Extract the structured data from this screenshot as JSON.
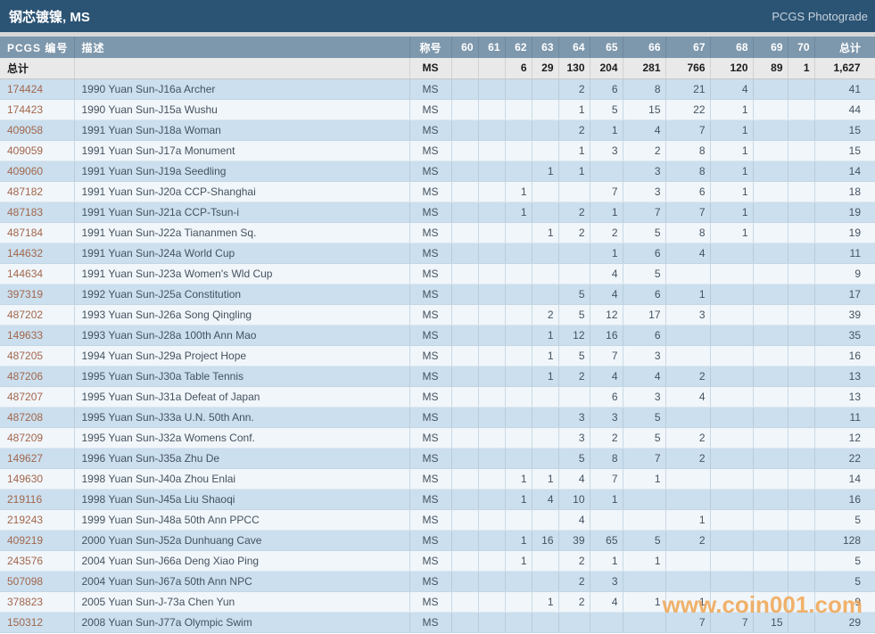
{
  "page": {
    "title": "钢芯镀镍, MS",
    "brand": "PCGS Photograde",
    "watermark": "www.coin001.com"
  },
  "colors": {
    "topbar_bg": "#2b5374",
    "header_bg": "#7d97ac",
    "row_blue": "#cbdfee",
    "row_white": "#f1f6fa",
    "totals_bg": "#e9e9e9",
    "pcgs_link": "#a2664c",
    "watermark": "#f0a24b"
  },
  "table": {
    "columns": [
      "PCGS 编号",
      "描述",
      "称号",
      "60",
      "61",
      "62",
      "63",
      "64",
      "65",
      "66",
      "67",
      "68",
      "69",
      "70",
      "总计"
    ],
    "grade_columns": [
      "60",
      "61",
      "62",
      "63",
      "64",
      "65",
      "66",
      "67",
      "68",
      "69",
      "70"
    ],
    "totals_row": {
      "label": "总计",
      "desc": "",
      "designation": "MS",
      "grades": [
        "",
        "",
        "6",
        "29",
        "130",
        "204",
        "281",
        "766",
        "120",
        "89",
        "1"
      ],
      "total": "1,627"
    },
    "rows": [
      {
        "pcgs": "174424",
        "desc": "1990 Yuan Sun-J16a Archer",
        "designation": "MS",
        "grades": [
          "",
          "",
          "",
          "",
          "2",
          "6",
          "8",
          "21",
          "4",
          "",
          ""
        ],
        "total": "41"
      },
      {
        "pcgs": "174423",
        "desc": "1990 Yuan Sun-J15a Wushu",
        "designation": "MS",
        "grades": [
          "",
          "",
          "",
          "",
          "1",
          "5",
          "15",
          "22",
          "1",
          "",
          ""
        ],
        "total": "44"
      },
      {
        "pcgs": "409058",
        "desc": "1991 Yuan Sun-J18a Woman",
        "designation": "MS",
        "grades": [
          "",
          "",
          "",
          "",
          "2",
          "1",
          "4",
          "7",
          "1",
          "",
          ""
        ],
        "total": "15"
      },
      {
        "pcgs": "409059",
        "desc": "1991 Yuan Sun-J17a Monument",
        "designation": "MS",
        "grades": [
          "",
          "",
          "",
          "",
          "1",
          "3",
          "2",
          "8",
          "1",
          "",
          ""
        ],
        "total": "15"
      },
      {
        "pcgs": "409060",
        "desc": "1991 Yuan Sun-J19a Seedling",
        "designation": "MS",
        "grades": [
          "",
          "",
          "",
          "1",
          "1",
          "",
          "3",
          "8",
          "1",
          "",
          ""
        ],
        "total": "14"
      },
      {
        "pcgs": "487182",
        "desc": "1991 Yuan Sun-J20a CCP-Shanghai",
        "designation": "MS",
        "grades": [
          "",
          "",
          "1",
          "",
          "",
          "7",
          "3",
          "6",
          "1",
          "",
          ""
        ],
        "total": "18"
      },
      {
        "pcgs": "487183",
        "desc": "1991 Yuan Sun-J21a CCP-Tsun-i",
        "designation": "MS",
        "grades": [
          "",
          "",
          "1",
          "",
          "2",
          "1",
          "7",
          "7",
          "1",
          "",
          ""
        ],
        "total": "19"
      },
      {
        "pcgs": "487184",
        "desc": "1991 Yuan Sun-J22a Tiananmen Sq.",
        "designation": "MS",
        "grades": [
          "",
          "",
          "",
          "1",
          "2",
          "2",
          "5",
          "8",
          "1",
          "",
          ""
        ],
        "total": "19"
      },
      {
        "pcgs": "144632",
        "desc": "1991 Yuan Sun-J24a World Cup",
        "designation": "MS",
        "grades": [
          "",
          "",
          "",
          "",
          "",
          "1",
          "6",
          "4",
          "",
          "",
          ""
        ],
        "total": "11"
      },
      {
        "pcgs": "144634",
        "desc": "1991 Yuan Sun-J23a Women's Wld Cup",
        "designation": "MS",
        "grades": [
          "",
          "",
          "",
          "",
          "",
          "4",
          "5",
          "",
          "",
          "",
          ""
        ],
        "total": "9"
      },
      {
        "pcgs": "397319",
        "desc": "1992 Yuan Sun-J25a Constitution",
        "designation": "MS",
        "grades": [
          "",
          "",
          "",
          "",
          "5",
          "4",
          "6",
          "1",
          "",
          "",
          ""
        ],
        "total": "17"
      },
      {
        "pcgs": "487202",
        "desc": "1993 Yuan Sun-J26a Song Qingling",
        "designation": "MS",
        "grades": [
          "",
          "",
          "",
          "2",
          "5",
          "12",
          "17",
          "3",
          "",
          "",
          ""
        ],
        "total": "39"
      },
      {
        "pcgs": "149633",
        "desc": "1993 Yuan Sun-J28a 100th Ann Mao",
        "designation": "MS",
        "grades": [
          "",
          "",
          "",
          "1",
          "12",
          "16",
          "6",
          "",
          "",
          "",
          ""
        ],
        "total": "35"
      },
      {
        "pcgs": "487205",
        "desc": "1994 Yuan Sun-J29a Project Hope",
        "designation": "MS",
        "grades": [
          "",
          "",
          "",
          "1",
          "5",
          "7",
          "3",
          "",
          "",
          "",
          ""
        ],
        "total": "16"
      },
      {
        "pcgs": "487206",
        "desc": "1995 Yuan Sun-J30a Table Tennis",
        "designation": "MS",
        "grades": [
          "",
          "",
          "",
          "1",
          "2",
          "4",
          "4",
          "2",
          "",
          "",
          ""
        ],
        "total": "13"
      },
      {
        "pcgs": "487207",
        "desc": "1995 Yuan Sun-J31a Defeat of Japan",
        "designation": "MS",
        "grades": [
          "",
          "",
          "",
          "",
          "",
          "6",
          "3",
          "4",
          "",
          "",
          ""
        ],
        "total": "13"
      },
      {
        "pcgs": "487208",
        "desc": "1995 Yuan Sun-J33a U.N. 50th Ann.",
        "designation": "MS",
        "grades": [
          "",
          "",
          "",
          "",
          "3",
          "3",
          "5",
          "",
          "",
          "",
          ""
        ],
        "total": "11"
      },
      {
        "pcgs": "487209",
        "desc": "1995 Yuan Sun-J32a Womens Conf.",
        "designation": "MS",
        "grades": [
          "",
          "",
          "",
          "",
          "3",
          "2",
          "5",
          "2",
          "",
          "",
          ""
        ],
        "total": "12"
      },
      {
        "pcgs": "149627",
        "desc": "1996 Yuan Sun-J35a Zhu De",
        "designation": "MS",
        "grades": [
          "",
          "",
          "",
          "",
          "5",
          "8",
          "7",
          "2",
          "",
          "",
          ""
        ],
        "total": "22"
      },
      {
        "pcgs": "149630",
        "desc": "1998 Yuan Sun-J40a Zhou Enlai",
        "designation": "MS",
        "grades": [
          "",
          "",
          "1",
          "1",
          "4",
          "7",
          "1",
          "",
          "",
          "",
          ""
        ],
        "total": "14"
      },
      {
        "pcgs": "219116",
        "desc": "1998 Yuan Sun-J45a Liu Shaoqi",
        "designation": "MS",
        "grades": [
          "",
          "",
          "1",
          "4",
          "10",
          "1",
          "",
          "",
          "",
          "",
          ""
        ],
        "total": "16"
      },
      {
        "pcgs": "219243",
        "desc": "1999 Yuan Sun-J48a 50th Ann PPCC",
        "designation": "MS",
        "grades": [
          "",
          "",
          "",
          "",
          "4",
          "",
          "",
          "1",
          "",
          "",
          ""
        ],
        "total": "5"
      },
      {
        "pcgs": "409219",
        "desc": "2000 Yuan Sun-J52a Dunhuang Cave",
        "designation": "MS",
        "grades": [
          "",
          "",
          "1",
          "16",
          "39",
          "65",
          "5",
          "2",
          "",
          "",
          ""
        ],
        "total": "128"
      },
      {
        "pcgs": "243576",
        "desc": "2004 Yuan Sun-J66a Deng Xiao Ping",
        "designation": "MS",
        "grades": [
          "",
          "",
          "1",
          "",
          "2",
          "1",
          "1",
          "",
          "",
          "",
          ""
        ],
        "total": "5"
      },
      {
        "pcgs": "507098",
        "desc": "2004 Yuan Sun-J67a 50th Ann NPC",
        "designation": "MS",
        "grades": [
          "",
          "",
          "",
          "",
          "2",
          "3",
          "",
          "",
          "",
          "",
          ""
        ],
        "total": "5"
      },
      {
        "pcgs": "378823",
        "desc": "2005 Yuan Sun-J-73a Chen Yun",
        "designation": "MS",
        "grades": [
          "",
          "",
          "",
          "1",
          "2",
          "4",
          "1",
          "1",
          "",
          "",
          ""
        ],
        "total": "9"
      },
      {
        "pcgs": "150312",
        "desc": "2008 Yuan Sun-J77a Olympic Swim",
        "designation": "MS",
        "grades": [
          "",
          "",
          "",
          "",
          "",
          "",
          "",
          "7",
          "7",
          "15",
          ""
        ],
        "total": "29"
      }
    ]
  }
}
